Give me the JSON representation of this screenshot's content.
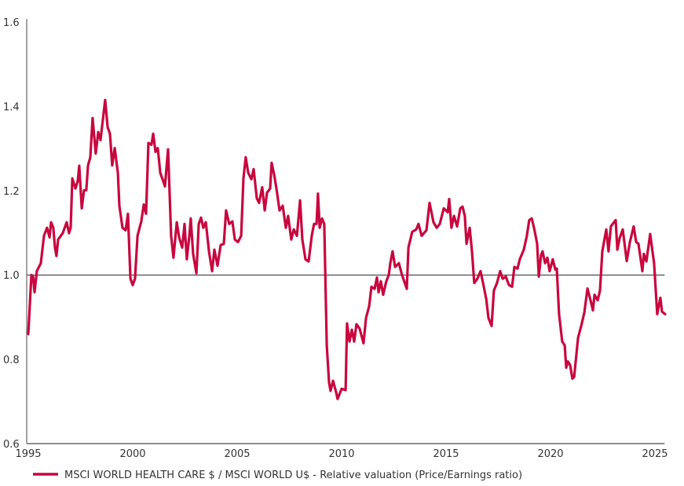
{
  "chart_data": {
    "type": "line",
    "title": "",
    "xlabel": "",
    "ylabel": "",
    "xlim": [
      1995,
      2025.5
    ],
    "ylim": [
      0.6,
      1.6
    ],
    "x_ticks": [
      1995,
      2000,
      2005,
      2010,
      2015,
      2020,
      2025
    ],
    "x_tick_labels": [
      "1995",
      "2000",
      "2005",
      "2010",
      "2015",
      "2020",
      "2025"
    ],
    "y_ticks": [
      0.6,
      0.8,
      1.0,
      1.2,
      1.4,
      1.6
    ],
    "y_tick_labels": [
      "0.6",
      "0.8",
      "1.0",
      "1.2",
      "1.4",
      "1.6"
    ],
    "reference_line": 1.0,
    "grid": false,
    "legend_position": "bottom",
    "series": [
      {
        "name": "MSCI WORLD HEALTH CARE $ / MSCI WORLD U$ - Relative valuation (Price/Earnings ratio)",
        "color": "#c8073f",
        "x": [
          1995.0,
          1995.15,
          1995.23,
          1995.3,
          1995.41,
          1995.6,
          1995.75,
          1995.9,
          1996.02,
          1996.09,
          1996.2,
          1996.28,
          1996.35,
          1996.43,
          1996.65,
          1996.84,
          1996.95,
          1997.03,
          1997.11,
          1997.26,
          1997.37,
          1997.44,
          1997.56,
          1997.67,
          1997.78,
          1997.86,
          1997.97,
          1998.08,
          1998.23,
          1998.35,
          1998.46,
          1998.68,
          1998.8,
          1998.91,
          1999.02,
          1999.14,
          1999.29,
          1999.36,
          1999.51,
          1999.66,
          1999.77,
          1999.89,
          2000.0,
          2000.11,
          2000.23,
          2000.41,
          2000.53,
          2000.64,
          2000.75,
          2000.9,
          2000.98,
          2001.09,
          2001.2,
          2001.32,
          2001.43,
          2001.54,
          2001.69,
          2001.84,
          2001.95,
          2002.11,
          2002.22,
          2002.37,
          2002.48,
          2002.59,
          2002.71,
          2002.78,
          2002.89,
          2003.05,
          2003.16,
          2003.27,
          2003.38,
          2003.5,
          2003.65,
          2003.8,
          2003.91,
          2004.06,
          2004.21,
          2004.36,
          2004.47,
          2004.62,
          2004.77,
          2004.89,
          2005.04,
          2005.19,
          2005.3,
          2005.41,
          2005.53,
          2005.68,
          2005.79,
          2005.94,
          2006.05,
          2006.2,
          2006.32,
          2006.43,
          2006.58,
          2006.65,
          2006.77,
          2006.88,
          2007.03,
          2007.18,
          2007.33,
          2007.44,
          2007.59,
          2007.71,
          2007.86,
          2008.01,
          2008.12,
          2008.27,
          2008.42,
          2008.57,
          2008.68,
          2008.8,
          2008.87,
          2008.95,
          2009.06,
          2009.17,
          2009.29,
          2009.4,
          2009.47,
          2009.59,
          2009.74,
          2009.81,
          2010.0,
          2010.19,
          2010.26,
          2010.38,
          2010.49,
          2010.6,
          2010.71,
          2010.86,
          2011.05,
          2011.17,
          2011.32,
          2011.43,
          2011.58,
          2011.69,
          2011.77,
          2011.88,
          2011.99,
          2012.14,
          2012.26,
          2012.33,
          2012.44,
          2012.56,
          2012.74,
          2012.89,
          2013.12,
          2013.2,
          2013.38,
          2013.57,
          2013.68,
          2013.83,
          2014.06,
          2014.21,
          2014.4,
          2014.55,
          2014.7,
          2014.89,
          2015.08,
          2015.15,
          2015.26,
          2015.38,
          2015.53,
          2015.68,
          2015.79,
          2015.9,
          2015.98,
          2016.13,
          2016.24,
          2016.35,
          2016.5,
          2016.65,
          2016.77,
          2016.92,
          2017.03,
          2017.18,
          2017.29,
          2017.44,
          2017.59,
          2017.71,
          2017.86,
          2018.01,
          2018.16,
          2018.27,
          2018.42,
          2018.53,
          2018.72,
          2018.87,
          2018.98,
          2019.1,
          2019.21,
          2019.36,
          2019.44,
          2019.55,
          2019.62,
          2019.74,
          2019.85,
          2019.96,
          2020.11,
          2020.23,
          2020.3,
          2020.41,
          2020.56,
          2020.68,
          2020.75,
          2020.83,
          2020.94,
          2021.05,
          2021.13,
          2021.32,
          2021.47,
          2021.62,
          2021.77,
          2021.92,
          2022.03,
          2022.11,
          2022.26,
          2022.37,
          2022.48,
          2022.67,
          2022.78,
          2022.89,
          2023.12,
          2023.2,
          2023.31,
          2023.46,
          2023.65,
          2023.8,
          2023.98,
          2024.1,
          2024.21,
          2024.4,
          2024.47,
          2024.59,
          2024.77,
          2024.96,
          2025.11,
          2025.26,
          2025.34,
          2025.49
        ],
        "y": [
          0.86,
          1.0,
          0.996,
          0.959,
          1.009,
          1.028,
          1.093,
          1.112,
          1.089,
          1.125,
          1.112,
          1.065,
          1.045,
          1.084,
          1.099,
          1.125,
          1.099,
          1.112,
          1.229,
          1.205,
          1.223,
          1.259,
          1.158,
          1.201,
          1.201,
          1.26,
          1.279,
          1.372,
          1.288,
          1.339,
          1.32,
          1.415,
          1.35,
          1.335,
          1.26,
          1.301,
          1.242,
          1.164,
          1.112,
          1.106,
          1.145,
          0.991,
          0.976,
          0.991,
          1.093,
          1.127,
          1.167,
          1.145,
          1.313,
          1.309,
          1.335,
          1.292,
          1.301,
          1.242,
          1.227,
          1.21,
          1.298,
          1.093,
          1.041,
          1.125,
          1.089,
          1.065,
          1.121,
          1.037,
          1.093,
          1.134,
          1.05,
          1.004,
          1.121,
          1.136,
          1.112,
          1.125,
          1.056,
          1.009,
          1.06,
          1.022,
          1.071,
          1.074,
          1.153,
          1.121,
          1.127,
          1.084,
          1.078,
          1.093,
          1.229,
          1.279,
          1.242,
          1.227,
          1.251,
          1.182,
          1.171,
          1.208,
          1.153,
          1.195,
          1.205,
          1.266,
          1.238,
          1.205,
          1.153,
          1.164,
          1.112,
          1.14,
          1.084,
          1.108,
          1.093,
          1.177,
          1.084,
          1.037,
          1.032,
          1.093,
          1.121,
          1.121,
          1.193,
          1.112,
          1.134,
          1.121,
          0.833,
          0.745,
          0.725,
          0.749,
          0.721,
          0.706,
          0.73,
          0.727,
          0.885,
          0.842,
          0.87,
          0.842,
          0.883,
          0.873,
          0.838,
          0.898,
          0.926,
          0.972,
          0.967,
          0.994,
          0.959,
          0.985,
          0.953,
          0.985,
          1.0,
          1.028,
          1.056,
          1.019,
          1.028,
          1.0,
          0.967,
          1.065,
          1.102,
          1.108,
          1.121,
          1.093,
          1.106,
          1.171,
          1.125,
          1.112,
          1.121,
          1.158,
          1.149,
          1.18,
          1.112,
          1.14,
          1.115,
          1.158,
          1.162,
          1.14,
          1.074,
          1.112,
          1.056,
          0.981,
          0.991,
          1.009,
          0.981,
          0.944,
          0.898,
          0.879,
          0.963,
          0.981,
          1.009,
          0.991,
          0.996,
          0.976,
          0.972,
          1.019,
          1.015,
          1.037,
          1.06,
          1.093,
          1.13,
          1.134,
          1.112,
          1.074,
          0.996,
          1.047,
          1.056,
          1.028,
          1.041,
          1.009,
          1.037,
          1.013,
          1.015,
          0.907,
          0.842,
          0.833,
          0.78,
          0.795,
          0.786,
          0.754,
          0.758,
          0.851,
          0.879,
          0.911,
          0.968,
          0.939,
          0.916,
          0.953,
          0.94,
          0.963,
          1.056,
          1.108,
          1.056,
          1.115,
          1.13,
          1.06,
          1.087,
          1.108,
          1.033,
          1.078,
          1.115,
          1.078,
          1.074,
          1.009,
          1.05,
          1.032,
          1.097,
          1.028,
          0.907,
          0.946,
          0.913,
          0.907
        ]
      }
    ]
  }
}
